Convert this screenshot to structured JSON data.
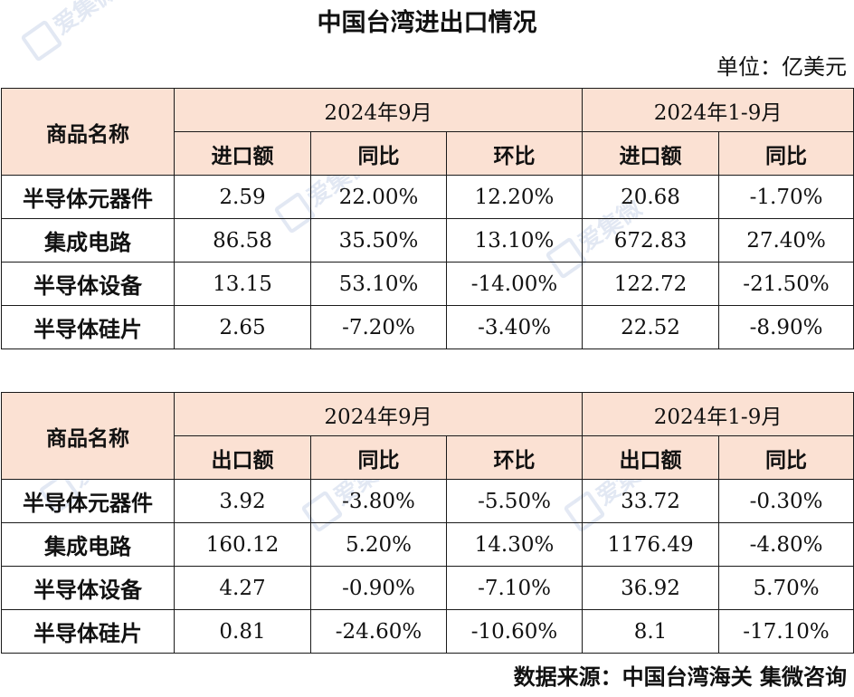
{
  "title": "中国台湾进出口情况",
  "unit": "单位：亿美元",
  "source": "数据来源：中国台湾海关 集微咨询",
  "import_table": {
    "name_header": "商品名称",
    "period1": "2024年9月",
    "period2": "2024年1-9月",
    "sub_headers": [
      "进口额",
      "同比",
      "环比",
      "进口额",
      "同比"
    ],
    "rows": [
      {
        "name": "半导体元器件",
        "values": [
          "2.59",
          "22.00%",
          "12.20%",
          "20.68",
          "-1.70%"
        ]
      },
      {
        "name": "集成电路",
        "values": [
          "86.58",
          "35.50%",
          "13.10%",
          "672.83",
          "27.40%"
        ]
      },
      {
        "name": "半导体设备",
        "values": [
          "13.15",
          "53.10%",
          "-14.00%",
          "122.72",
          "-21.50%"
        ]
      },
      {
        "name": "半导体硅片",
        "values": [
          "2.65",
          "-7.20%",
          "-3.40%",
          "22.52",
          "-8.90%"
        ]
      }
    ]
  },
  "export_table": {
    "name_header": "商品名称",
    "period1": "2024年9月",
    "period2": "2024年1-9月",
    "sub_headers": [
      "出口额",
      "同比",
      "环比",
      "出口额",
      "同比"
    ],
    "rows": [
      {
        "name": "半导体元器件",
        "values": [
          "3.92",
          "-3.80%",
          "-5.50%",
          "33.72",
          "-0.30%"
        ]
      },
      {
        "name": "集成电路",
        "values": [
          "160.12",
          "5.20%",
          "14.30%",
          "1176.49",
          "-4.80%"
        ]
      },
      {
        "name": "半导体设备",
        "values": [
          "4.27",
          "-0.90%",
          "-7.10%",
          "36.92",
          "5.70%"
        ]
      },
      {
        "name": "半导体硅片",
        "values": [
          "0.81",
          "-24.60%",
          "-10.60%",
          "8.1",
          "-17.10%"
        ]
      }
    ]
  },
  "watermark": {
    "text": "爱集微",
    "color": "#2b55a8"
  },
  "colors": {
    "header_bg": "#fbe1d3",
    "border": "#1a1a1a"
  }
}
